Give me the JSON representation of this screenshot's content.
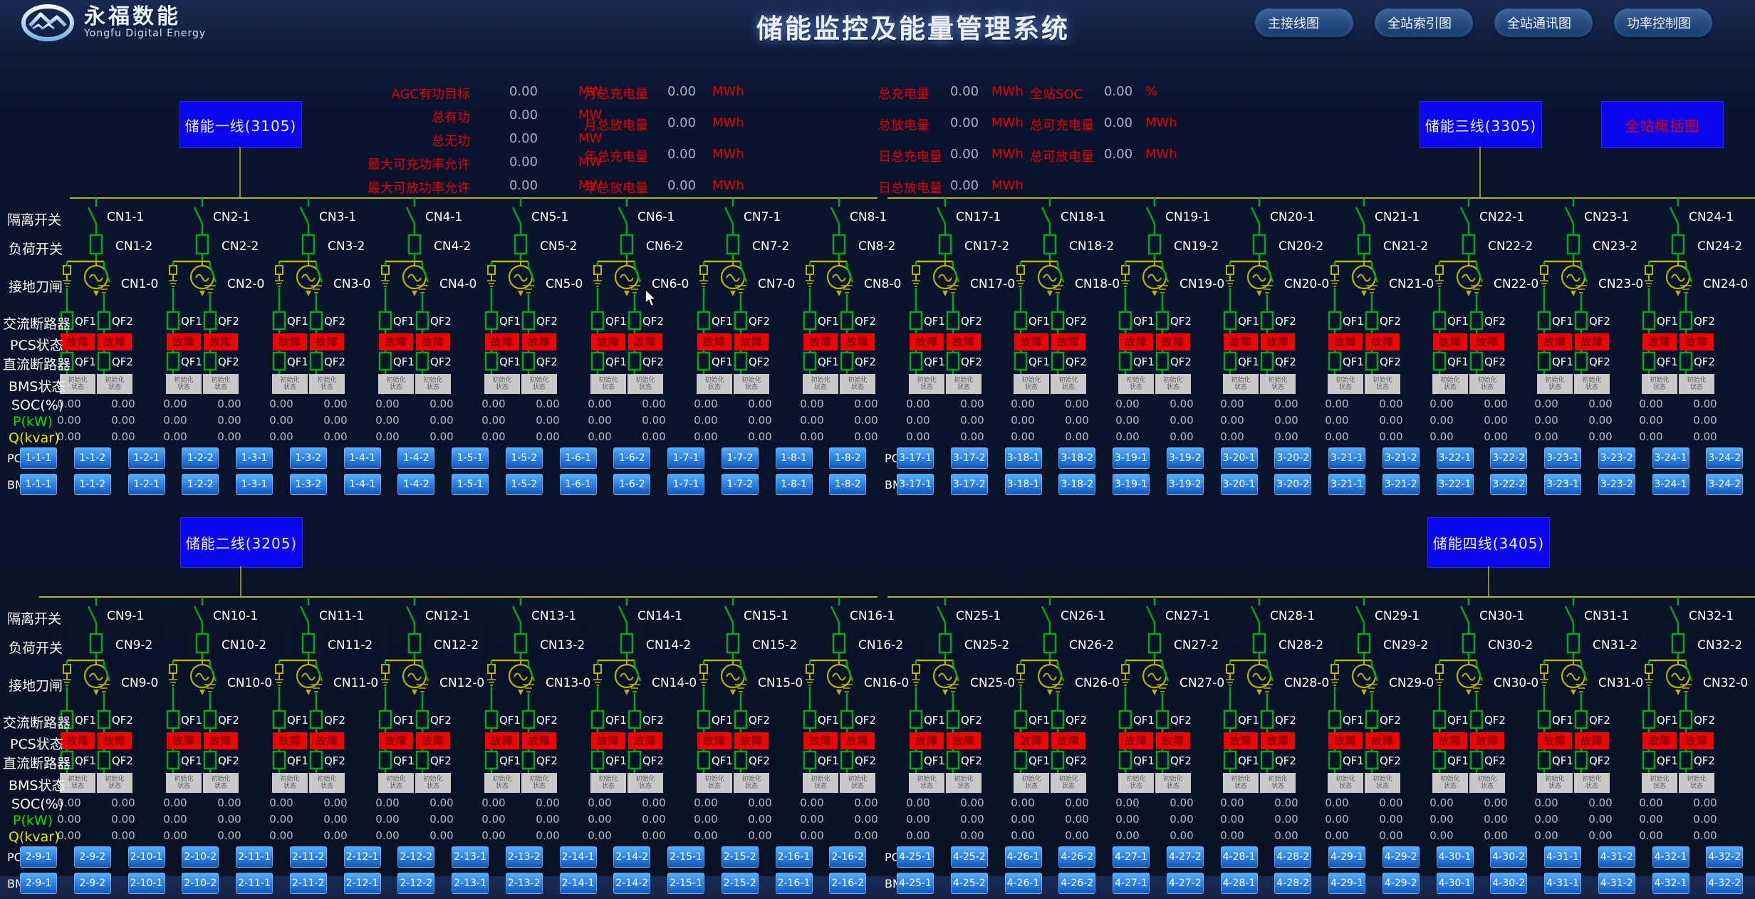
{
  "header": {
    "logo_title": "永福数能",
    "logo_subtitle": "Yongfu Digital Energy",
    "title": "储能监控及能量管理系统",
    "nav": [
      "主接线图",
      "全站索引图",
      "全站通讯图",
      "功率控制图"
    ]
  },
  "stats": {
    "col1": [
      {
        "label": "AGC有功目标",
        "value": "0.00",
        "unit": "MW"
      },
      {
        "label": "总有功",
        "value": "0.00",
        "unit": "MW"
      },
      {
        "label": "总无功",
        "value": "0.00",
        "unit": "MW"
      },
      {
        "label": "最大可充功率允许",
        "value": "0.00",
        "unit": "MW"
      },
      {
        "label": "最大可放功率允许",
        "value": "0.00",
        "unit": "MW"
      }
    ],
    "col2": [
      {
        "label": "月总充电量",
        "value": "0.00",
        "unit": "MWh"
      },
      {
        "label": "月总放电量",
        "value": "0.00",
        "unit": "MWh"
      },
      {
        "label": "年总充电量",
        "value": "0.00",
        "unit": "MWh"
      },
      {
        "label": "年总放电量",
        "value": "0.00",
        "unit": "MWh"
      }
    ],
    "col3": [
      {
        "label": "总充电量",
        "value": "0.00",
        "unit": "MWh"
      },
      {
        "label": "总放电量",
        "value": "0.00",
        "unit": "MWh"
      },
      {
        "label": "日总充电量",
        "value": "0.00",
        "unit": "MWh"
      },
      {
        "label": "日总放电量",
        "value": "0.00",
        "unit": "MWh"
      }
    ],
    "col4": [
      {
        "label": "全站SOC",
        "value": "0.00",
        "unit": "%"
      },
      {
        "label": "总可充电量",
        "value": "0.00",
        "unit": "MWh"
      },
      {
        "label": "总可放电量",
        "value": "0.00",
        "unit": "MWh"
      }
    ]
  },
  "overview_button_label": "全站概括图",
  "row_labels": {
    "isolation": "隔离开关",
    "load_switch": "负荷开关",
    "ground_knife": "接地刀闸",
    "ac_breaker": "交流断路器",
    "pcs_status": "PCS状态",
    "dc_breaker": "直流断路器",
    "bms_status": "BMS状态",
    "soc": "SOC(%)",
    "p": "P(kW)",
    "q": "Q(kvar)",
    "pcs": "PCS",
    "bms": "BMS"
  },
  "symbols": {
    "qf1": "QF1",
    "qf2": "QF2",
    "fault_badge": "故障",
    "bms_state_line1": "初始化",
    "bms_state_line2": "状态",
    "value_default": "0.00"
  },
  "colors": {
    "fault_bg": "#ee0505",
    "bms_badge_bg": "#c9c9c9",
    "line_green": "#00a81e",
    "line_yellow": "#b9b300",
    "button_blue": "#0b06ee",
    "device_btn_blue": "#2e86e8",
    "stat_red": "#e60000"
  },
  "quadrants": [
    {
      "key": "q1",
      "line_button": "储能一线(3105)",
      "feeders": [
        [
          "CN1-1",
          "CN1-2",
          "CN1-0"
        ],
        [
          "CN2-1",
          "CN2-2",
          "CN2-0"
        ],
        [
          "CN3-1",
          "CN3-2",
          "CN3-0"
        ],
        [
          "CN4-1",
          "CN4-2",
          "CN4-0"
        ],
        [
          "CN5-1",
          "CN5-2",
          "CN5-0"
        ],
        [
          "CN6-1",
          "CN6-2",
          "CN6-0"
        ],
        [
          "CN7-1",
          "CN7-2",
          "CN7-0"
        ],
        [
          "CN8-1",
          "CN8-2",
          "CN8-0"
        ]
      ],
      "pcs_buttons": [
        "1-1-1",
        "1-1-2",
        "1-2-1",
        "1-2-2",
        "1-3-1",
        "1-3-2",
        "1-4-1",
        "1-4-2",
        "1-5-1",
        "1-5-2",
        "1-6-1",
        "1-6-2",
        "1-7-1",
        "1-7-2",
        "1-8-1",
        "1-8-2"
      ],
      "bms_buttons": [
        "1-1-1",
        "1-1-2",
        "1-2-1",
        "1-2-2",
        "1-3-1",
        "1-3-2",
        "1-4-1",
        "1-4-2",
        "1-5-1",
        "1-5-2",
        "1-6-1",
        "1-6-2",
        "1-7-1",
        "1-7-2",
        "1-8-1",
        "1-8-2"
      ]
    },
    {
      "key": "q2",
      "line_button": "储能二线(3205)",
      "feeders": [
        [
          "CN9-1",
          "CN9-2",
          "CN9-0"
        ],
        [
          "CN10-1",
          "CN10-2",
          "CN10-0"
        ],
        [
          "CN11-1",
          "CN11-2",
          "CN11-0"
        ],
        [
          "CN12-1",
          "CN12-2",
          "CN12-0"
        ],
        [
          "CN13-1",
          "CN13-2",
          "CN13-0"
        ],
        [
          "CN14-1",
          "CN14-2",
          "CN14-0"
        ],
        [
          "CN15-1",
          "CN15-2",
          "CN15-0"
        ],
        [
          "CN16-1",
          "CN16-2",
          "CN16-0"
        ]
      ],
      "pcs_buttons": [
        "2-9-1",
        "2-9-2",
        "2-10-1",
        "2-10-2",
        "2-11-1",
        "2-11-2",
        "2-12-1",
        "2-12-2",
        "2-13-1",
        "2-13-2",
        "2-14-1",
        "2-14-2",
        "2-15-1",
        "2-15-2",
        "2-16-1",
        "2-16-2"
      ],
      "bms_buttons": [
        "2-9-1",
        "2-9-2",
        "2-10-1",
        "2-10-2",
        "2-11-1",
        "2-11-2",
        "2-12-1",
        "2-12-2",
        "2-13-1",
        "2-13-2",
        "2-14-1",
        "2-14-2",
        "2-15-1",
        "2-15-2",
        "2-16-1",
        "2-16-2"
      ]
    },
    {
      "key": "q3",
      "line_button": "储能三线(3305)",
      "feeders": [
        [
          "CN17-1",
          "CN17-2",
          "CN17-0"
        ],
        [
          "CN18-1",
          "CN18-2",
          "CN18-0"
        ],
        [
          "CN19-1",
          "CN19-2",
          "CN19-0"
        ],
        [
          "CN20-1",
          "CN20-2",
          "CN20-0"
        ],
        [
          "CN21-1",
          "CN21-2",
          "CN21-0"
        ],
        [
          "CN22-1",
          "CN22-2",
          "CN22-0"
        ],
        [
          "CN23-1",
          "CN23-2",
          "CN23-0"
        ],
        [
          "CN24-1",
          "CN24-2",
          "CN24-0"
        ]
      ],
      "pcs_buttons": [
        "3-17-1",
        "3-17-2",
        "3-18-1",
        "3-18-2",
        "3-19-1",
        "3-19-2",
        "3-20-1",
        "3-20-2",
        "3-21-1",
        "3-21-2",
        "3-22-1",
        "3-22-2",
        "3-23-1",
        "3-23-2",
        "3-24-1",
        "3-24-2"
      ],
      "bms_buttons": [
        "3-17-1",
        "3-17-2",
        "3-18-1",
        "3-18-2",
        "3-19-1",
        "3-19-2",
        "3-20-1",
        "3-20-2",
        "3-21-1",
        "3-21-2",
        "3-22-1",
        "3-22-2",
        "3-23-1",
        "3-23-2",
        "3-24-1",
        "3-24-2"
      ]
    },
    {
      "key": "q4",
      "line_button": "储能四线(3405)",
      "feeders": [
        [
          "CN25-1",
          "CN25-2",
          "CN25-0"
        ],
        [
          "CN26-1",
          "CN26-2",
          "CN26-0"
        ],
        [
          "CN27-1",
          "CN27-2",
          "CN27-0"
        ],
        [
          "CN28-1",
          "CN28-2",
          "CN28-0"
        ],
        [
          "CN29-1",
          "CN29-2",
          "CN29-0"
        ],
        [
          "CN30-1",
          "CN30-2",
          "CN30-0"
        ],
        [
          "CN31-1",
          "CN31-2",
          "CN31-0"
        ],
        [
          "CN32-1",
          "CN32-2",
          "CN32-0"
        ]
      ],
      "pcs_buttons": [
        "4-25-1",
        "4-25-2",
        "4-26-1",
        "4-26-2",
        "4-27-1",
        "4-27-2",
        "4-28-1",
        "4-28-2",
        "4-29-1",
        "4-29-2",
        "4-30-1",
        "4-30-2",
        "4-31-1",
        "4-31-2",
        "4-32-1",
        "4-32-2"
      ],
      "bms_buttons": [
        "4-25-1",
        "4-25-2",
        "4-26-1",
        "4-26-2",
        "4-27-1",
        "4-27-2",
        "4-28-1",
        "4-28-2",
        "4-29-1",
        "4-29-2",
        "4-30-1",
        "4-30-2",
        "4-31-1",
        "4-31-2",
        "4-32-1",
        "4-32-2"
      ]
    }
  ]
}
